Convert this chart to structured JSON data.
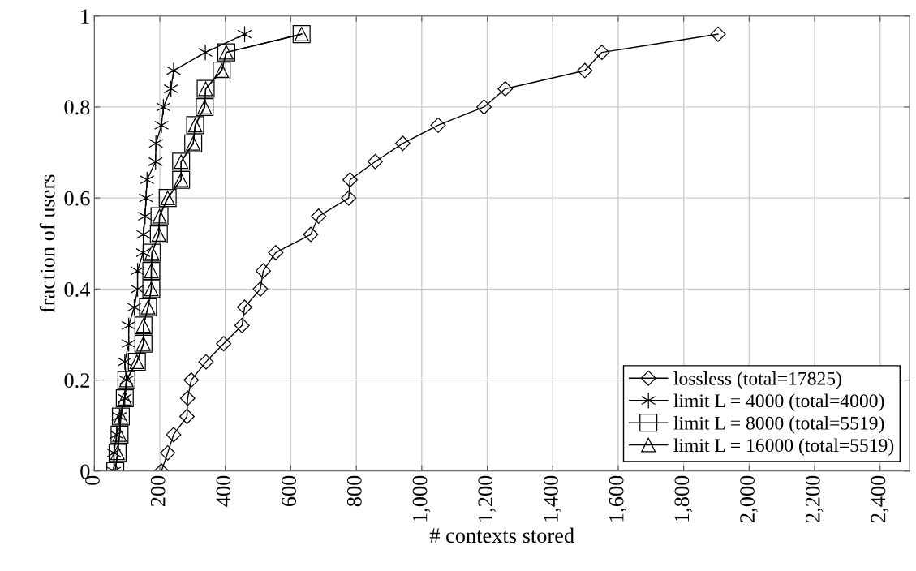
{
  "chart_data": {
    "type": "line",
    "xlabel": "# contexts stored",
    "ylabel": "fraction of users",
    "xlim": [
      0,
      2490
    ],
    "ylim": [
      0,
      1
    ],
    "xticks": [
      0,
      200,
      400,
      600,
      800,
      {
        "value": 1000,
        "label": "1,000"
      },
      {
        "value": 1200,
        "label": "1,200"
      },
      {
        "value": 1400,
        "label": "1,400"
      },
      {
        "value": 1600,
        "label": "1,600"
      },
      {
        "value": 1800,
        "label": "1,800"
      },
      {
        "value": 2000,
        "label": "2,000"
      },
      {
        "value": 2200,
        "label": "2,200"
      },
      {
        "value": 2400,
        "label": "2,400"
      }
    ],
    "yticks": [
      0,
      0.2,
      0.4,
      0.6,
      0.8,
      1
    ],
    "grid": true,
    "legend": "bottom right",
    "line_style": "solid",
    "series": [
      {
        "name": "lossless (total=17825)",
        "color": "#000000",
        "marker": "diamond",
        "x": [
          205,
          224,
          242,
          283,
          285,
          296,
          341,
          395,
          451,
          459,
          507,
          516,
          554,
          661,
          685,
          777,
          781,
          858,
          942,
          1050,
          1190,
          1255,
          1498,
          1550,
          1905
        ],
        "values": [
          0,
          0.04,
          0.08,
          0.12,
          0.16,
          0.2,
          0.24,
          0.28,
          0.32,
          0.36,
          0.4,
          0.44,
          0.48,
          0.52,
          0.56,
          0.6,
          0.64,
          0.68,
          0.72,
          0.76,
          0.8,
          0.84,
          0.88,
          0.92,
          0.96
        ]
      },
      {
        "name": "limit L = 4000 (total=4000)",
        "color": "#000000",
        "marker": "cross",
        "x": [
          60,
          60,
          68,
          77,
          93,
          98,
          93,
          105,
          105,
          122,
          132,
          132,
          149,
          150,
          155,
          158,
          161,
          187,
          188,
          205,
          211,
          234,
          242,
          339,
          459
        ],
        "values": [
          0,
          0.04,
          0.08,
          0.12,
          0.16,
          0.2,
          0.24,
          0.28,
          0.32,
          0.36,
          0.4,
          0.44,
          0.48,
          0.52,
          0.56,
          0.6,
          0.64,
          0.68,
          0.72,
          0.76,
          0.8,
          0.84,
          0.88,
          0.92,
          0.96
        ]
      },
      {
        "name": "limit L = 8000 (total=5519)",
        "color": "#000000",
        "marker": "square",
        "x": [
          64,
          71,
          77,
          81,
          93,
          98,
          130,
          150,
          150,
          164,
          174,
          174,
          176,
          197,
          199,
          224,
          265,
          265,
          302,
          308,
          337,
          340,
          389,
          403,
          633
        ],
        "values": [
          0,
          0.04,
          0.08,
          0.12,
          0.16,
          0.2,
          0.24,
          0.28,
          0.32,
          0.36,
          0.4,
          0.44,
          0.48,
          0.52,
          0.56,
          0.6,
          0.64,
          0.68,
          0.72,
          0.76,
          0.8,
          0.84,
          0.88,
          0.92,
          0.96
        ]
      },
      {
        "name": "limit L = 16000 (total=5519)",
        "color": "#000000",
        "marker": "triangle",
        "x": [
          64,
          71,
          77,
          81,
          93,
          98,
          130,
          150,
          150,
          164,
          174,
          174,
          176,
          197,
          199,
          224,
          265,
          265,
          302,
          308,
          337,
          340,
          389,
          403,
          633
        ],
        "values": [
          0,
          0.04,
          0.08,
          0.12,
          0.16,
          0.2,
          0.24,
          0.28,
          0.32,
          0.36,
          0.4,
          0.44,
          0.48,
          0.52,
          0.56,
          0.6,
          0.64,
          0.68,
          0.72,
          0.76,
          0.8,
          0.84,
          0.88,
          0.92,
          0.96
        ]
      }
    ]
  }
}
